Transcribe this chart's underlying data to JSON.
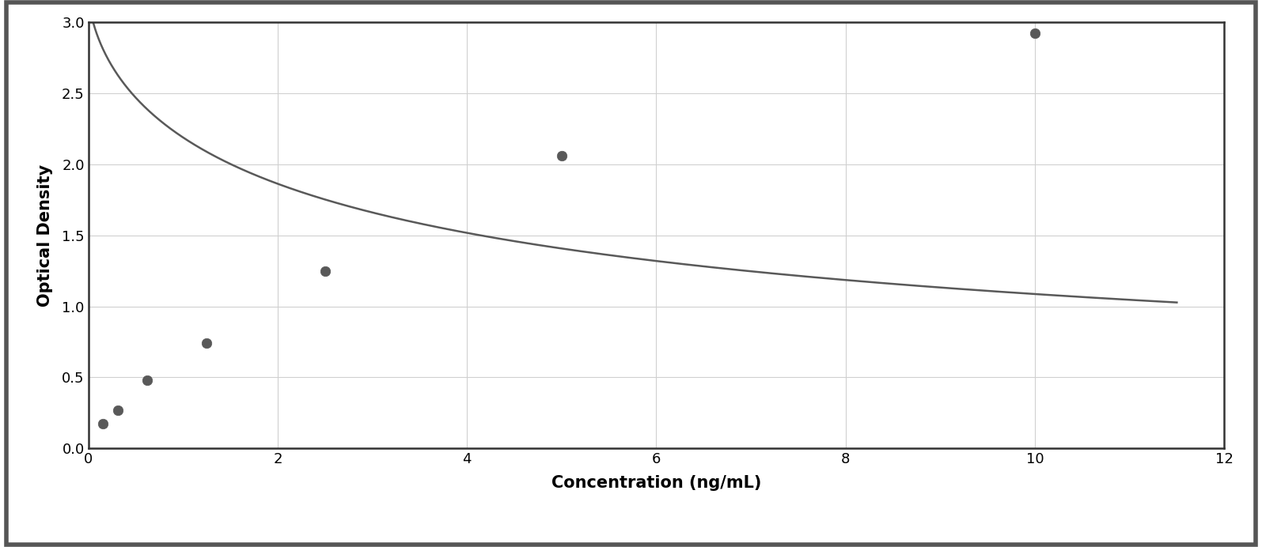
{
  "x_data": [
    0.156,
    0.313,
    0.625,
    1.25,
    2.5,
    5.0,
    10.0
  ],
  "y_data": [
    0.175,
    0.27,
    0.48,
    0.74,
    1.25,
    2.06,
    2.92
  ],
  "xlabel": "Concentration (ng/mL)",
  "ylabel": "Optical Density",
  "xlim": [
    0,
    12
  ],
  "ylim": [
    0,
    3
  ],
  "xticks": [
    0,
    2,
    4,
    6,
    8,
    10,
    12
  ],
  "yticks": [
    0,
    0.5,
    1.0,
    1.5,
    2.0,
    2.5,
    3.0
  ],
  "marker_color": "#595959",
  "line_color": "#595959",
  "marker_size": 9,
  "line_width": 1.8,
  "xlabel_fontsize": 15,
  "ylabel_fontsize": 15,
  "tick_fontsize": 13,
  "xlabel_fontweight": "bold",
  "ylabel_fontweight": "bold",
  "background_color": "#ffffff",
  "plot_bg_color": "#ffffff",
  "grid_color": "#d0d0d0",
  "outer_border_color": "#555555",
  "spine_color": "#333333"
}
